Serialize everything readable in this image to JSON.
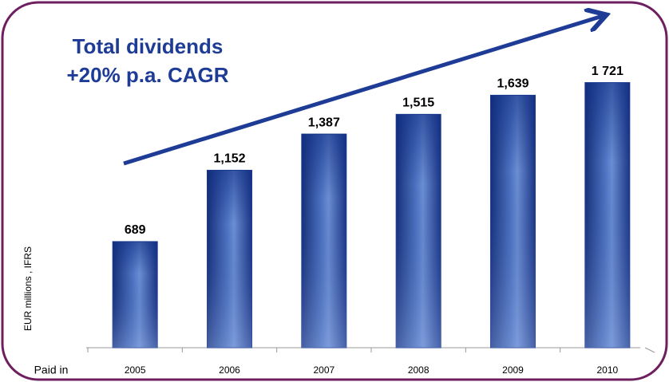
{
  "chart_data": {
    "type": "bar",
    "title": "Total dividends",
    "subtitle": "+20% p.a. CAGR",
    "y_label": "EUR millions , IFRS",
    "x_label": "Paid in",
    "categories": [
      "2005",
      "2006",
      "2007",
      "2008",
      "2009",
      "2010"
    ],
    "values": [
      689,
      1152,
      1387,
      1515,
      1639,
      1721
    ],
    "value_labels": [
      "689",
      "1,152",
      "1,387",
      "1,515",
      "1,639",
      "1 721"
    ],
    "color": "#1f3f95",
    "ylim": [
      0,
      2050
    ]
  }
}
